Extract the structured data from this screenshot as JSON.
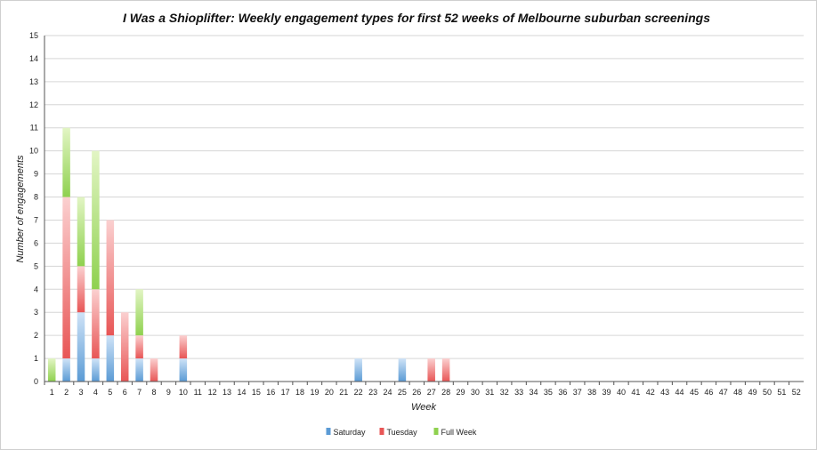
{
  "chart_data": {
    "type": "bar",
    "stacked": true,
    "title": "I Was a Shioplifter: Weekly engagement types for first 52 weeks of Melbourne suburban screenings",
    "xlabel": "Week",
    "ylabel": "Number of engagements",
    "ylim": [
      0,
      15
    ],
    "yticks": [
      0,
      1,
      2,
      3,
      4,
      5,
      6,
      7,
      8,
      9,
      10,
      11,
      12,
      13,
      14,
      15
    ],
    "grid": true,
    "legend_position": "bottom",
    "categories": [
      "1",
      "2",
      "3",
      "4",
      "5",
      "6",
      "7",
      "8",
      "9",
      "10",
      "11",
      "12",
      "13",
      "14",
      "15",
      "16",
      "17",
      "18",
      "19",
      "20",
      "21",
      "22",
      "23",
      "24",
      "25",
      "26",
      "27",
      "28",
      "29",
      "30",
      "31",
      "32",
      "33",
      "34",
      "35",
      "36",
      "37",
      "38",
      "39",
      "40",
      "41",
      "42",
      "43",
      "44",
      "45",
      "46",
      "47",
      "48",
      "49",
      "50",
      "51",
      "52"
    ],
    "series": [
      {
        "name": "Saturday",
        "color": "#5b9bd5",
        "values": [
          0,
          1,
          3,
          1,
          2,
          0,
          1,
          0,
          0,
          1,
          0,
          0,
          0,
          0,
          0,
          0,
          0,
          0,
          0,
          0,
          0,
          1,
          0,
          0,
          1,
          0,
          0,
          0,
          0,
          0,
          0,
          0,
          0,
          0,
          0,
          0,
          0,
          0,
          0,
          0,
          0,
          0,
          0,
          0,
          0,
          0,
          0,
          0,
          0,
          0,
          0,
          0
        ]
      },
      {
        "name": "Tuesday",
        "color": "#e85656",
        "values": [
          0,
          7,
          2,
          3,
          5,
          3,
          1,
          1,
          0,
          1,
          0,
          0,
          0,
          0,
          0,
          0,
          0,
          0,
          0,
          0,
          0,
          0,
          0,
          0,
          0,
          0,
          1,
          1,
          0,
          0,
          0,
          0,
          0,
          0,
          0,
          0,
          0,
          0,
          0,
          0,
          0,
          0,
          0,
          0,
          0,
          0,
          0,
          0,
          0,
          0,
          0,
          0
        ]
      },
      {
        "name": "Full Week",
        "color": "#8fd14f",
        "values": [
          1,
          3,
          3,
          6,
          0,
          0,
          2,
          0,
          0,
          0,
          0,
          0,
          0,
          0,
          0,
          0,
          0,
          0,
          0,
          0,
          0,
          0,
          0,
          0,
          0,
          0,
          0,
          0,
          0,
          0,
          0,
          0,
          0,
          0,
          0,
          0,
          0,
          0,
          0,
          0,
          0,
          0,
          0,
          0,
          0,
          0,
          0,
          0,
          0,
          0,
          0,
          0
        ]
      }
    ]
  }
}
